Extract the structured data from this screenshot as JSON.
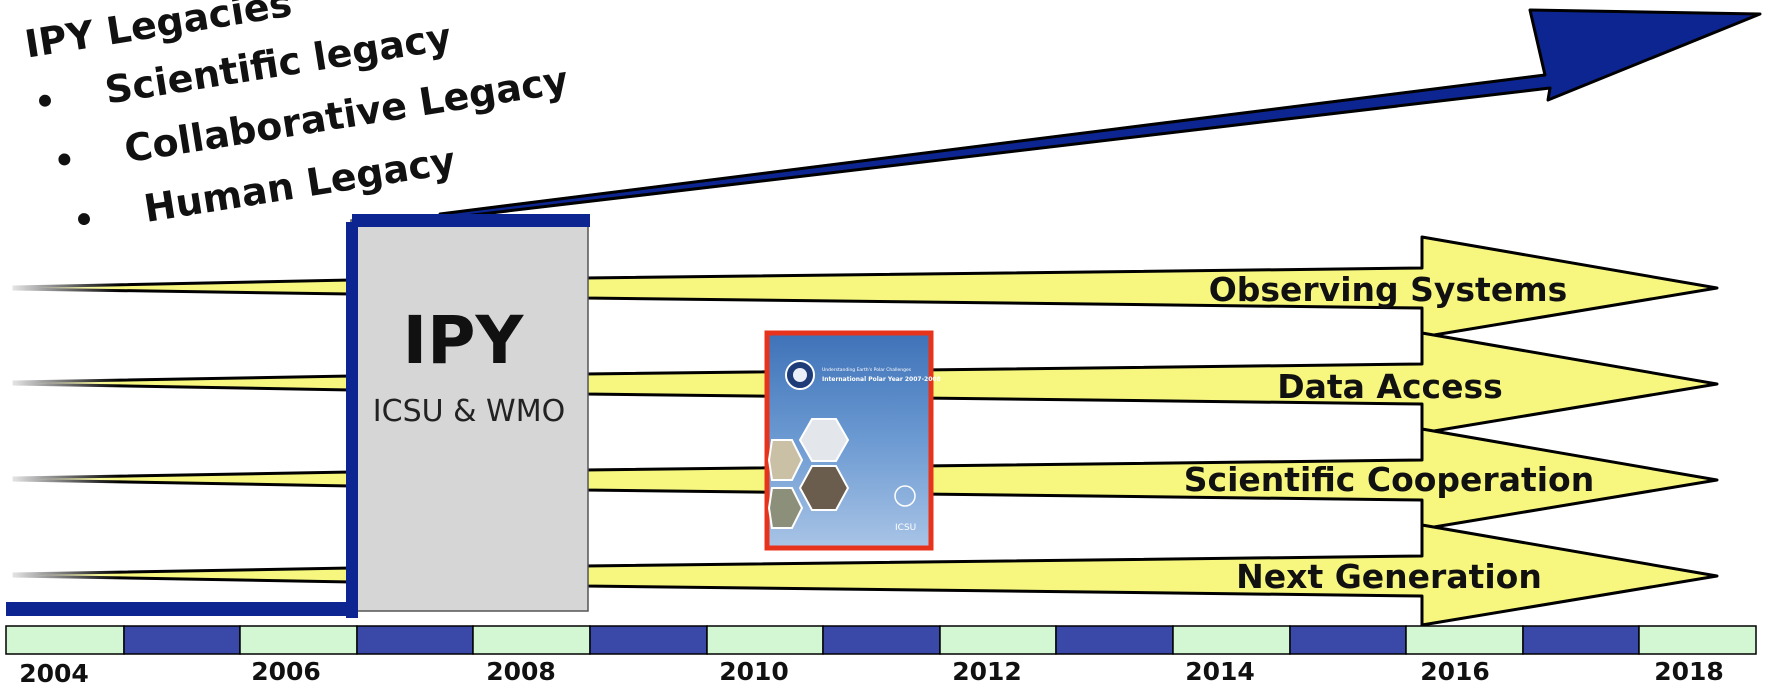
{
  "legacies": {
    "title": "IPY Legacies",
    "items": [
      "Scientific legacy",
      "Collaborative Legacy",
      "Human Legacy"
    ]
  },
  "ipy_box": {
    "title": "IPY",
    "subtitle": "ICSU & WMO"
  },
  "streams": [
    {
      "label": "Observing Systems"
    },
    {
      "label": "Data Access"
    },
    {
      "label": "Scientific Cooperation"
    },
    {
      "label": "Next Generation"
    }
  ],
  "timeline": {
    "years": [
      "2004",
      "2006",
      "2008",
      "2010",
      "2012",
      "2014",
      "2016",
      "2018"
    ]
  },
  "report_cover": {
    "subtitle": "Understanding Earth's Polar Challenges",
    "title": "International Polar Year 2007-2008",
    "footer": "ICSU"
  },
  "colors": {
    "arrow_fill": "#f7f780",
    "big_arrow": "#0d2590",
    "timeline_light": "#d3f7d3",
    "timeline_dark": "#3a49a8",
    "ipy_box": "#d6d6d6",
    "ipy_border": "#0d2590",
    "cover_border": "#e8331c",
    "cover_bg": "#4a7fc1"
  },
  "icons": [
    "report-cover-image",
    "big-blue-arrow-icon"
  ]
}
